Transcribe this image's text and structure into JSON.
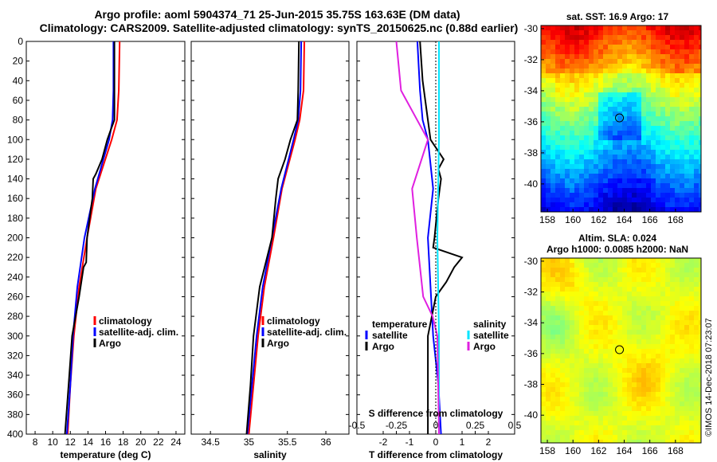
{
  "figure": {
    "title_line1": "Argo profile: aoml 5904374_71 25-Jun-2015 35.75S 163.63E (DM data)",
    "title_line2": "Climatology: CARS2009. Satellite-adjusted climatology: synTS_20150625.nc (0.88d earlier)",
    "watermark": "©IMOS 14-Dec-2018 07:23:07"
  },
  "colors": {
    "climatology": "#ff0000",
    "satellite": "#0000ff",
    "argo": "#000000",
    "sat_salinity": "#00e5ff",
    "clim_salinity": "#e020e0"
  },
  "chart_data": [
    {
      "type": "line",
      "name": "temperature",
      "xlabel": "temperature (deg C)",
      "ylabel": "",
      "xlim": [
        7,
        25
      ],
      "ylim": [
        400,
        0
      ],
      "xticks": [
        8,
        10,
        12,
        14,
        16,
        18,
        20,
        22,
        24
      ],
      "yticks": [
        0,
        20,
        40,
        60,
        80,
        100,
        120,
        140,
        160,
        180,
        200,
        220,
        240,
        260,
        280,
        300,
        320,
        340,
        360,
        380,
        400
      ],
      "legend": [
        "climatology",
        "satellite-adj. clim.",
        "Argo"
      ],
      "series": [
        {
          "name": "climatology",
          "depth": [
            0,
            50,
            80,
            100,
            150,
            200,
            250,
            300,
            350,
            400
          ],
          "values": [
            17.6,
            17.5,
            17.3,
            16.7,
            14.9,
            13.9,
            13.0,
            12.4,
            12.0,
            11.7
          ]
        },
        {
          "name": "satellite-adj. clim.",
          "depth": [
            0,
            50,
            80,
            100,
            150,
            200,
            250,
            300,
            350,
            400
          ],
          "values": [
            16.9,
            16.9,
            16.8,
            16.4,
            14.8,
            13.6,
            12.8,
            12.3,
            12.0,
            11.6
          ]
        },
        {
          "name": "Argo",
          "depth": [
            0,
            50,
            80,
            90,
            100,
            120,
            135,
            140,
            160,
            200,
            225,
            230,
            260,
            300,
            350,
            400
          ],
          "values": [
            17.0,
            17.0,
            17.0,
            16.6,
            16.2,
            15.6,
            14.9,
            14.6,
            14.5,
            13.9,
            13.8,
            13.5,
            13.0,
            12.2,
            11.8,
            11.4
          ]
        }
      ]
    },
    {
      "type": "line",
      "name": "salinity",
      "xlabel": "salinity",
      "ylabel": "",
      "xlim": [
        34.25,
        36.3
      ],
      "ylim": [
        400,
        0
      ],
      "xticks": [
        34.5,
        35,
        35.5,
        36
      ],
      "xticklabels": [
        "34.5",
        "35",
        "35.5",
        "36"
      ],
      "legend": [
        "climatology",
        "satellite-adj. clim.",
        "Argo"
      ],
      "series": [
        {
          "name": "climatology",
          "depth": [
            0,
            50,
            80,
            100,
            150,
            200,
            250,
            300,
            350,
            400
          ],
          "values": [
            35.72,
            35.71,
            35.66,
            35.6,
            35.43,
            35.32,
            35.2,
            35.12,
            35.06,
            35.0
          ]
        },
        {
          "name": "satellite-adj. clim.",
          "depth": [
            0,
            50,
            80,
            100,
            150,
            200,
            250,
            300,
            350,
            400
          ],
          "values": [
            35.68,
            35.67,
            35.64,
            35.58,
            35.42,
            35.3,
            35.18,
            35.1,
            35.04,
            34.98
          ]
        },
        {
          "name": "Argo",
          "depth": [
            0,
            50,
            80,
            100,
            120,
            140,
            160,
            200,
            250,
            300,
            350,
            400
          ],
          "values": [
            35.65,
            35.64,
            35.63,
            35.54,
            35.47,
            35.38,
            35.35,
            35.3,
            35.14,
            35.06,
            35.02,
            34.97
          ]
        }
      ]
    },
    {
      "type": "line",
      "name": "difference",
      "xlabel": "T difference from climatology",
      "xlabel_top": "S difference from climatology",
      "xlim": [
        -3,
        3
      ],
      "ylim": [
        400,
        0
      ],
      "xticks": [
        -2,
        -1,
        0,
        1,
        2
      ],
      "xticks_s": [
        -0.5,
        -0.25,
        0,
        0.25,
        0.5
      ],
      "xticklabels_s": [
        "-0.5",
        "-0.25",
        "0",
        "0.25",
        "0.5"
      ],
      "legend": {
        "temperature": "temperature",
        "salinity": "salinity",
        "satellite": "satellite",
        "argo": "Argo"
      },
      "series": [
        {
          "name": "T satellite",
          "depth": [
            0,
            50,
            80,
            100,
            150,
            200,
            250,
            300,
            350,
            400
          ],
          "values": [
            -0.7,
            -0.6,
            -0.5,
            -0.3,
            -0.1,
            -0.3,
            -0.2,
            -0.1,
            0.1,
            0.2
          ]
        },
        {
          "name": "T Argo",
          "depth": [
            0,
            40,
            80,
            100,
            120,
            130,
            140,
            160,
            200,
            210,
            220,
            230,
            245,
            260,
            300,
            400
          ],
          "values": [
            -0.6,
            -0.5,
            -0.3,
            -0.2,
            0.3,
            0.1,
            0.2,
            0.1,
            -0.05,
            -0.1,
            1.0,
            0.7,
            0.4,
            0.0,
            -0.3,
            -0.3
          ]
        },
        {
          "name": "S satellite",
          "depth": [
            0,
            100,
            200,
            300,
            400
          ],
          "values": [
            0.02,
            0.02,
            0.01,
            0.02,
            0.02
          ]
        },
        {
          "name": "S Argo",
          "depth": [
            0,
            50,
            100,
            150,
            200,
            260,
            280,
            300,
            400
          ],
          "values": [
            -0.25,
            -0.22,
            -0.05,
            -0.15,
            -0.12,
            -0.08,
            -0.02,
            0.01,
            0.02
          ]
        }
      ]
    }
  ],
  "maps": {
    "sst": {
      "title": "sat. SST: 16.9 Argo: 17",
      "xticks": [
        "158",
        "160",
        "162",
        "164",
        "166",
        "168"
      ],
      "yticks": [
        "-30",
        "-32",
        "-34",
        "-36",
        "-38",
        "-40"
      ],
      "argo_lon": 163.63,
      "argo_lat": -35.75
    },
    "sla": {
      "title_line1": "Altim. SLA: 0.024",
      "title_line2": "Argo h1000: 0.0085 h2000: NaN",
      "xticks": [
        "158",
        "160",
        "162",
        "164",
        "166",
        "168"
      ],
      "yticks": [
        "-30",
        "-32",
        "-34",
        "-36",
        "-38",
        "-40"
      ],
      "argo_lon": 163.63,
      "argo_lat": -35.75
    }
  }
}
